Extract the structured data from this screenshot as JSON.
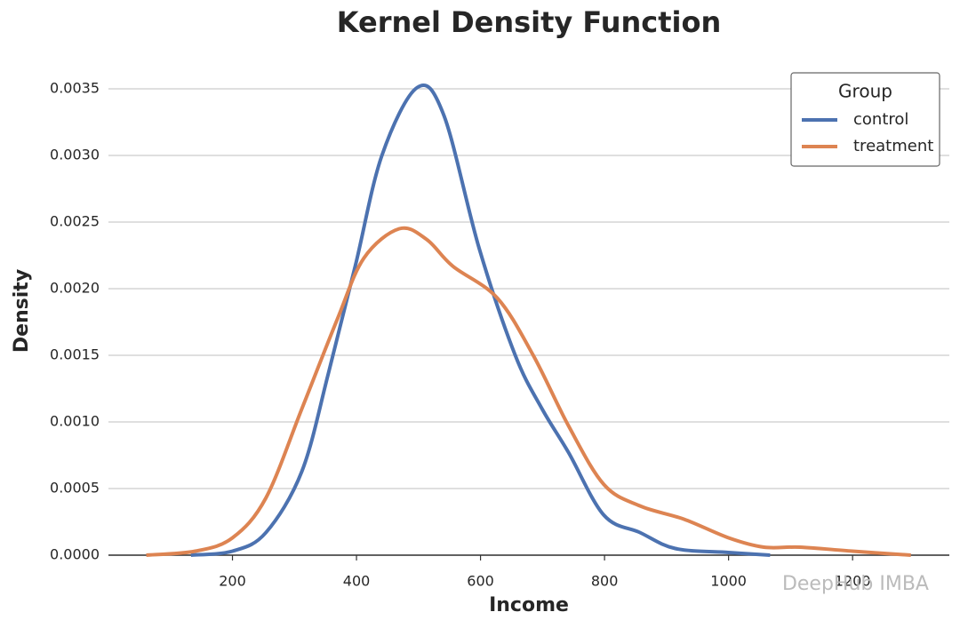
{
  "chart_data": {
    "type": "line",
    "title": "Kernel Density Function",
    "x_label": "Income",
    "y_label": "Density",
    "legend_title": "Group",
    "legend_position": "upper right",
    "grid": true,
    "watermark": "DeepHub IMBA",
    "xlim": [
      0,
      1356
    ],
    "ylim": [
      0,
      0.0036
    ],
    "xticks": [
      200,
      400,
      600,
      800,
      1000,
      1200
    ],
    "yticks": [
      {
        "value": 0,
        "label": "0.0000"
      },
      {
        "value": 0.0005,
        "label": "0.0005"
      },
      {
        "value": 0.001,
        "label": "0.0010"
      },
      {
        "value": 0.0015,
        "label": "0.0015"
      },
      {
        "value": 0.002,
        "label": "0.0020"
      },
      {
        "value": 0.0025,
        "label": "0.0025"
      },
      {
        "value": 0.003,
        "label": "0.0030"
      },
      {
        "value": 0.0035,
        "label": "0.0035"
      }
    ],
    "series": [
      {
        "name": "control",
        "color": "#4c72b0",
        "x": [
          133,
          200,
          254,
          312,
          355,
          398,
          441,
          498,
          541,
          598,
          656,
          699,
          742,
          799,
          857,
          914,
          1000,
          1067
        ],
        "values": [
          0,
          3e-05,
          0.00017,
          0.00063,
          0.00137,
          0.00217,
          0.003,
          0.00351,
          0.0033,
          0.0023,
          0.0015,
          0.0011,
          0.00077,
          0.0003,
          0.00017,
          5e-05,
          2e-05,
          0
        ]
      },
      {
        "name": "treatment",
        "color": "#dd8452",
        "x": [
          61,
          140,
          200,
          254,
          312,
          369,
          412,
          469,
          513,
          555,
          627,
          685,
          742,
          799,
          857,
          928,
          1000,
          1057,
          1115,
          1200,
          1294
        ],
        "values": [
          0,
          3e-05,
          0.00013,
          0.00043,
          0.0011,
          0.00177,
          0.00223,
          0.00245,
          0.00237,
          0.00217,
          0.00193,
          0.0015,
          0.00097,
          0.00053,
          0.00037,
          0.00027,
          0.00013,
          6e-05,
          6e-05,
          3e-05,
          0
        ]
      }
    ]
  }
}
